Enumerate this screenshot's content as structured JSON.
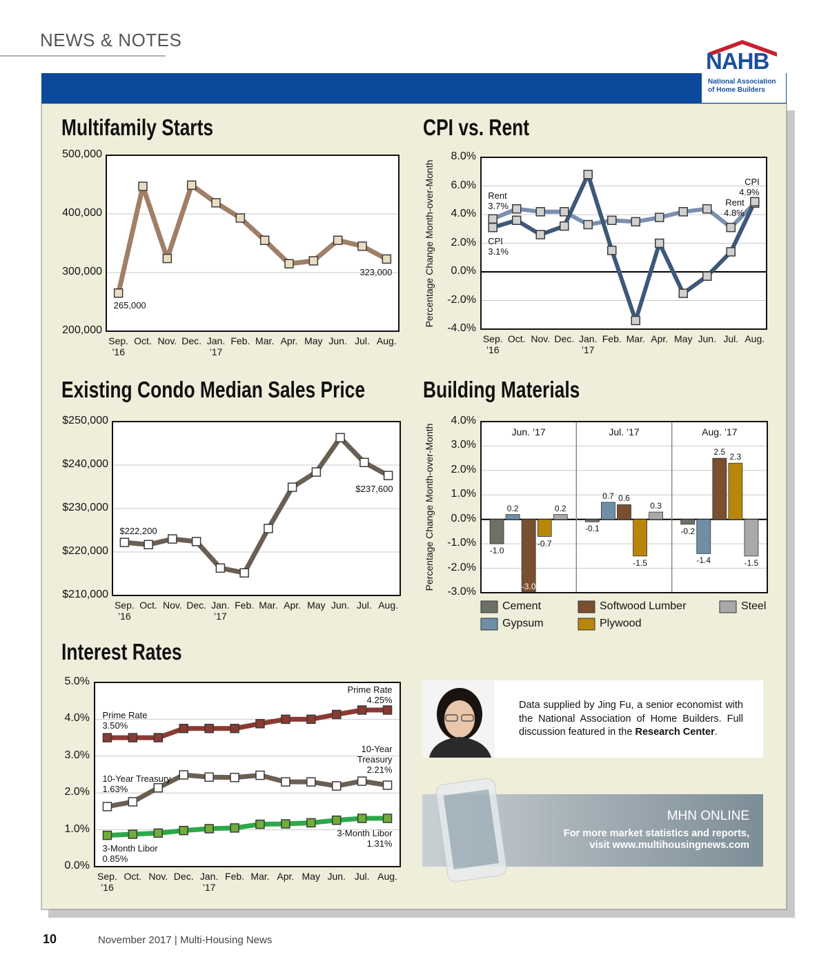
{
  "header": {
    "section": "NEWS & NOTES",
    "logo": "NAHB",
    "logo_subtitle": "National Association of Home Builders"
  },
  "chart_data": [
    {
      "type": "line",
      "title": "Multifamily Starts",
      "categories": [
        "Sep. ’16",
        "Oct.",
        "Nov.",
        "Dec.",
        "Jan. ’17",
        "Feb.",
        "Mar.",
        "Apr.",
        "May",
        "Jun.",
        "Jul.",
        "Aug."
      ],
      "values": [
        265000,
        447000,
        324000,
        449000,
        419000,
        393000,
        355000,
        315000,
        320000,
        355000,
        345000,
        323000
      ],
      "value_labels": [
        "265,000",
        null,
        null,
        null,
        null,
        null,
        null,
        null,
        null,
        null,
        null,
        "323,000"
      ],
      "color": "#a07e67",
      "marker_color": "#eadcc0",
      "ylim": [
        200000,
        500000
      ],
      "yticks": [
        {
          "value": 200000,
          "label": "200,000"
        },
        {
          "value": 300000,
          "label": "300,000"
        },
        {
          "value": 400000,
          "label": "400,000"
        },
        {
          "value": 500000,
          "label": "500,000"
        }
      ],
      "grid": true
    },
    {
      "type": "line",
      "title": "CPI vs. Rent",
      "y_label": "Percentage Change Month-over-Month",
      "categories": [
        "Sep. ’16",
        "Oct.",
        "Nov.",
        "Dec.",
        "Jan. ’17",
        "Feb.",
        "Mar.",
        "Apr.",
        "May",
        "Jun.",
        "Jul.",
        "Aug."
      ],
      "series": [
        {
          "name": "Rent",
          "color": "#7b8fb0",
          "marker_color": "#d0d0d0",
          "values": [
            3.7,
            4.4,
            4.2,
            4.2,
            3.3,
            3.6,
            3.5,
            3.8,
            4.2,
            4.4,
            3.1,
            4.8
          ],
          "value_labels": [
            "3.7%",
            null,
            null,
            null,
            null,
            null,
            null,
            null,
            null,
            null,
            null,
            "4.8%"
          ]
        },
        {
          "name": "CPI",
          "color": "#3d5878",
          "marker_color": "#d0d0d0",
          "values": [
            3.1,
            3.6,
            2.6,
            3.2,
            6.8,
            1.5,
            -3.4,
            2.0,
            -1.5,
            -0.3,
            1.4,
            4.9
          ],
          "value_labels": [
            "3.1%",
            null,
            null,
            null,
            null,
            null,
            null,
            null,
            null,
            null,
            null,
            "4.9%"
          ]
        }
      ],
      "ylim": [
        -4,
        8
      ],
      "yticks": [
        {
          "value": -4,
          "label": "-4.0%"
        },
        {
          "value": -2,
          "label": "-2.0%"
        },
        {
          "value": 0,
          "label": "0.0%"
        },
        {
          "value": 2,
          "label": "2.0%"
        },
        {
          "value": 4,
          "label": "4.0%"
        },
        {
          "value": 6,
          "label": "6.0%"
        },
        {
          "value": 8,
          "label": "8.0%"
        }
      ],
      "grid": true
    },
    {
      "type": "line",
      "title": "Existing Condo Median Sales Price",
      "categories": [
        "Sep. ’16",
        "Oct.",
        "Nov.",
        "Dec.",
        "Jan. ’17",
        "Feb.",
        "Mar.",
        "Apr.",
        "May",
        "Jun.",
        "Jul.",
        "Aug."
      ],
      "values": [
        222200,
        221700,
        223000,
        222400,
        216300,
        215200,
        225400,
        234900,
        238400,
        246300,
        240600,
        237600
      ],
      "value_labels": [
        "$222,200",
        null,
        null,
        null,
        null,
        null,
        null,
        null,
        null,
        null,
        null,
        "$237,600"
      ],
      "color": "#6b5f52",
      "marker_color": "#ffffff",
      "ylim": [
        210000,
        250000
      ],
      "yticks": [
        {
          "value": 210000,
          "label": "$210,000"
        },
        {
          "value": 220000,
          "label": "$220,000"
        },
        {
          "value": 230000,
          "label": "$230,000"
        },
        {
          "value": 240000,
          "label": "$240,000"
        },
        {
          "value": 250000,
          "label": "$250,000"
        }
      ],
      "grid": true
    },
    {
      "type": "bar",
      "title": "Building Materials",
      "y_label": "Percentage Change Month-over-Month",
      "categories": [
        "Jun. ’17",
        "Jul. ’17",
        "Aug. ’17"
      ],
      "series": [
        {
          "name": "Cement",
          "color": "#6d7065",
          "values": [
            -1.0,
            -0.1,
            -0.2
          ],
          "value_labels": [
            "-1.0",
            "-0.1",
            "-0.2"
          ]
        },
        {
          "name": "Gypsum",
          "color": "#6e8fa5",
          "values": [
            0.2,
            0.7,
            -1.4
          ],
          "value_labels": [
            "0.2",
            "0.7",
            "-1.4"
          ]
        },
        {
          "name": "Softwood Lumber",
          "color": "#7a4f30",
          "values": [
            -3.0,
            0.6,
            2.5
          ],
          "value_labels": [
            "-3.0",
            "0.6",
            "2.5"
          ]
        },
        {
          "name": "Plywood",
          "color": "#b8860b",
          "values": [
            -0.7,
            -1.5,
            2.3
          ],
          "value_labels": [
            "-0.7",
            "-1.5",
            "2.3"
          ]
        },
        {
          "name": "Steel",
          "color": "#a9a9a9",
          "values": [
            0.2,
            0.3,
            -1.5
          ],
          "value_labels": [
            "0.2",
            "0.3",
            "-1.5"
          ]
        }
      ],
      "ylim": [
        -3,
        4
      ],
      "yticks": [
        {
          "value": -3,
          "label": "-3.0%"
        },
        {
          "value": -2,
          "label": "-2.0%"
        },
        {
          "value": -1,
          "label": "-1.0%"
        },
        {
          "value": 0,
          "label": "0.0%"
        },
        {
          "value": 1,
          "label": "1.0%"
        },
        {
          "value": 2,
          "label": "2.0%"
        },
        {
          "value": 3,
          "label": "3.0%"
        },
        {
          "value": 4,
          "label": "4.0%"
        }
      ],
      "grid": true,
      "legend": "bottom"
    },
    {
      "type": "line",
      "title": "Interest Rates",
      "categories": [
        "Sep. ’16",
        "Oct.",
        "Nov.",
        "Dec.",
        "Jan. ’17",
        "Feb.",
        "Mar.",
        "Apr.",
        "May",
        "Jun.",
        "Jul.",
        "Aug."
      ],
      "series": [
        {
          "name": "Prime Rate",
          "color": "#8b3a32",
          "marker_color": "#8b3a32",
          "values": [
            3.5,
            3.5,
            3.5,
            3.75,
            3.75,
            3.75,
            3.88,
            4.0,
            4.0,
            4.13,
            4.25,
            4.25
          ],
          "value_labels": [
            "3.50%",
            null,
            null,
            null,
            null,
            null,
            null,
            null,
            null,
            null,
            null,
            "4.25%"
          ]
        },
        {
          "name": "10-Year Treasury",
          "color": "#6b5f52",
          "marker_color": "#ffffff",
          "values": [
            1.63,
            1.76,
            2.14,
            2.49,
            2.43,
            2.42,
            2.48,
            2.3,
            2.3,
            2.19,
            2.32,
            2.21
          ],
          "value_labels": [
            "1.63%",
            null,
            null,
            null,
            null,
            null,
            null,
            null,
            null,
            null,
            null,
            "2.21%"
          ]
        },
        {
          "name": "3-Month Libor",
          "color": "#2ea84a",
          "marker_color": "#6fae3a",
          "values": [
            0.85,
            0.88,
            0.91,
            0.98,
            1.03,
            1.05,
            1.15,
            1.16,
            1.19,
            1.26,
            1.31,
            1.31
          ],
          "value_labels": [
            "0.85%",
            null,
            null,
            null,
            null,
            null,
            null,
            null,
            null,
            null,
            null,
            "1.31%"
          ]
        }
      ],
      "ylim": [
        0,
        5
      ],
      "yticks": [
        {
          "value": 0,
          "label": "0.0%"
        },
        {
          "value": 1,
          "label": "1.0%"
        },
        {
          "value": 2,
          "label": "2.0%"
        },
        {
          "value": 3,
          "label": "3.0%"
        },
        {
          "value": 4,
          "label": "4.0%"
        },
        {
          "value": 5,
          "label": "5.0%"
        }
      ],
      "grid": true
    }
  ],
  "info_box": {
    "text": "Data supplied by Jing Fu, a senior economist with the National Association of Home Builders. Full discussion featured in the",
    "link": "Research Center",
    "end": "."
  },
  "promo": {
    "title": "MHN ONLINE",
    "text": "For more market statistics and reports, visit www.multihousingnews.com"
  },
  "footer": {
    "page": "10",
    "text": "November 2017 | Multi-Housing News"
  }
}
